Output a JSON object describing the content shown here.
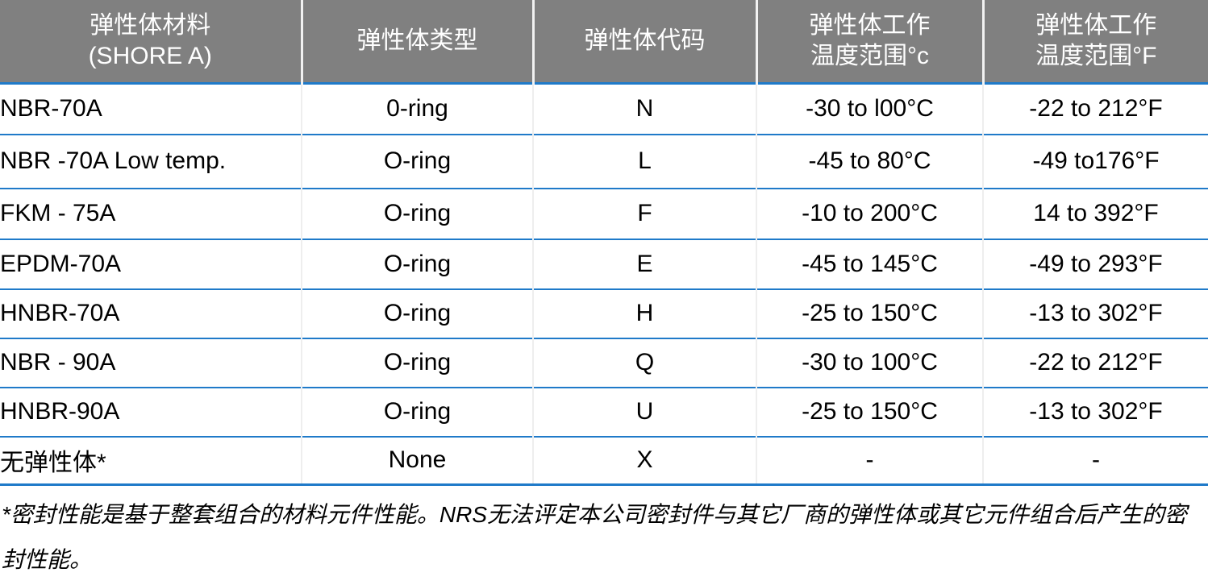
{
  "table": {
    "headers": [
      {
        "line1": "弹性体材料",
        "line2": "(SHORE A)"
      },
      {
        "line1": "弹性体类型",
        "line2": ""
      },
      {
        "line1": "弹性体代码",
        "line2": ""
      },
      {
        "line1": "弹性体工作",
        "line2": "温度范围°c"
      },
      {
        "line1": "弹性体工作",
        "line2": "温度范围°F"
      }
    ],
    "rows": [
      [
        "NBR-70A",
        "0-ring",
        "N",
        "-30 to l00°C",
        "-22 to 212°F"
      ],
      [
        "NBR -70A Low temp.",
        "O-ring",
        "L",
        "-45 to 80°C",
        "-49 to176°F"
      ],
      [
        "FKM - 75A",
        "O-ring",
        "F",
        "-10 to 200°C",
        "14 to 392°F"
      ],
      [
        "EPDM-70A",
        "O-ring",
        "E",
        "-45 to 145°C",
        "-49 to 293°F"
      ],
      [
        "HNBR-70A",
        "O-ring",
        "H",
        "-25 to 150°C",
        "-13 to 302°F"
      ],
      [
        "NBR - 90A",
        "O-ring",
        "Q",
        "-30 to 100°C",
        "-22 to 212°F"
      ],
      [
        "HNBR-90A",
        "O-ring",
        "U",
        "-25 to 150°C",
        "-13 to 302°F"
      ],
      [
        "无弹性体*",
        "None",
        "X",
        "-",
        "-"
      ]
    ]
  },
  "footnote": "*密封性能是基于整套组合的材料元件性能。NRS无法评定本公司密封件与其它厂商的弹性体或其它元件组合后产生的密封性能。",
  "colors": {
    "header_bg": "#808080",
    "row_border": "#1f7ac9"
  }
}
